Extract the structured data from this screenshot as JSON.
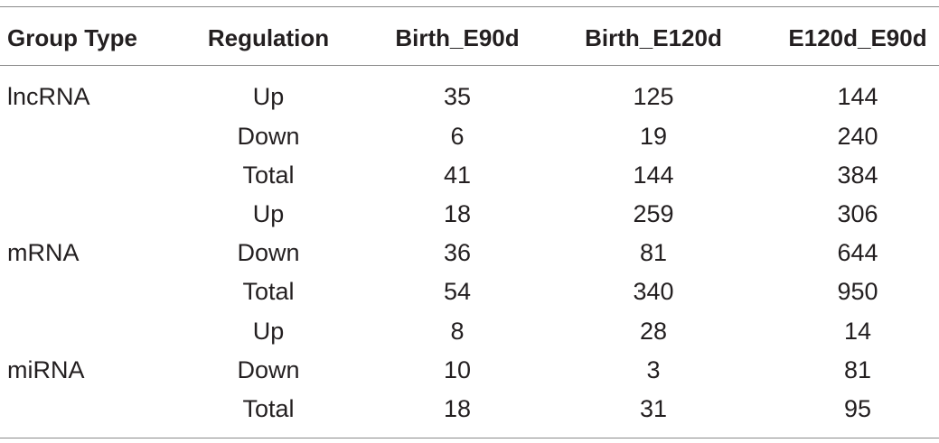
{
  "table": {
    "headers": {
      "group_type": "Group Type",
      "regulation": "Regulation",
      "birth_e90d": "Birth_E90d",
      "birth_e120d": "Birth_E120d",
      "e120d_e90d": "E120d_E90d"
    },
    "rows": [
      {
        "group": "lncRNA",
        "regulation": "Up",
        "birth_e90d": "35",
        "birth_e120d": "125",
        "e120d_e90d": "144"
      },
      {
        "group": "",
        "regulation": "Down",
        "birth_e90d": "6",
        "birth_e120d": "19",
        "e120d_e90d": "240"
      },
      {
        "group": "",
        "regulation": "Total",
        "birth_e90d": "41",
        "birth_e120d": "144",
        "e120d_e90d": "384"
      },
      {
        "group": "",
        "regulation": "Up",
        "birth_e90d": "18",
        "birth_e120d": "259",
        "e120d_e90d": "306"
      },
      {
        "group": "mRNA",
        "regulation": "Down",
        "birth_e90d": "36",
        "birth_e120d": "81",
        "e120d_e90d": "644"
      },
      {
        "group": "",
        "regulation": "Total",
        "birth_e90d": "54",
        "birth_e120d": "340",
        "e120d_e90d": "950"
      },
      {
        "group": "",
        "regulation": "Up",
        "birth_e90d": "8",
        "birth_e120d": "28",
        "e120d_e90d": "14"
      },
      {
        "group": "miRNA",
        "regulation": "Down",
        "birth_e90d": "10",
        "birth_e120d": "3",
        "e120d_e90d": "81"
      },
      {
        "group": "",
        "regulation": "Total",
        "birth_e90d": "18",
        "birth_e120d": "31",
        "e120d_e90d": "95"
      }
    ]
  }
}
